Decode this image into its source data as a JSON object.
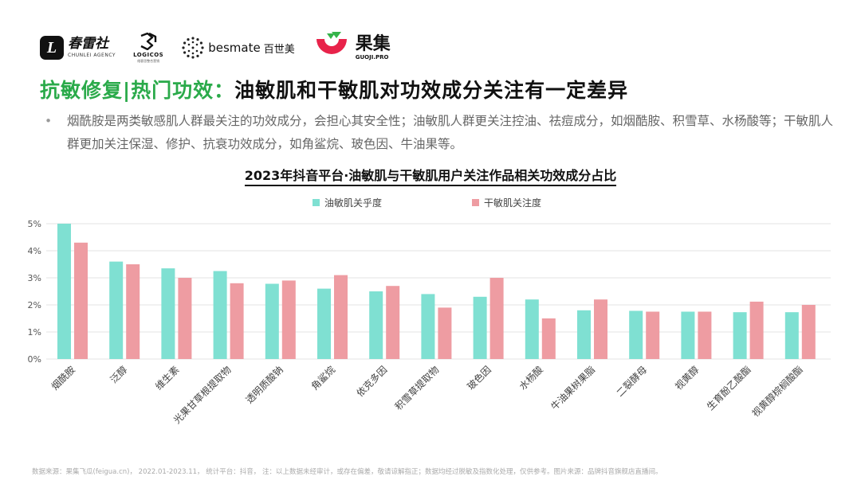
{
  "brands": {
    "chunlei_mark": "L",
    "chunlei_cn": "春雷社",
    "chunlei_en": "CHUNLEI AGENCY",
    "logicos_en": "LOGICOS",
    "logicos_cn": "络客思整合营销",
    "besmate_en": "besmate",
    "besmate_cn": "百世美",
    "guoji_cn": "果集",
    "guoji_en": "GUOJI.PRO"
  },
  "headline": {
    "tag": "抗敏修复",
    "sep": "|",
    "topic": "热门功效：",
    "statement": "油敏肌和干敏肌对功效成分关注有一定差异"
  },
  "bullet": {
    "marker": "•",
    "text": "烟酰胺是两类敏感肌人群最关注的功效成分，会担心其安全性；油敏肌人群更关注控油、祛痘成分，如烟酷胺、积雪草、水杨酸等；干敏肌人群更加关注保湿、修护、抗衰功效成分，如角鲨烷、玻色因、牛油果等。"
  },
  "chart_data": {
    "type": "bar",
    "title": "2023年抖音平台·油敏肌与干敏肌用户关注作品相关功效成分占比",
    "categories": [
      "烟酰胺",
      "泛醇",
      "维生素",
      "光果甘草根提取物",
      "透明质酸钠",
      "角鲨烷",
      "依克多因",
      "积雪草提取物",
      "玻色因",
      "水杨酸",
      "牛油果树果脂",
      "二裂酵母",
      "视黄醇",
      "生育酚乙酸酯",
      "视黄醇棕榈酸酯"
    ],
    "series": [
      {
        "name": "油敏肌关乎度",
        "color": "#7fe0d2",
        "values": [
          5.0,
          3.6,
          3.35,
          3.25,
          2.78,
          2.6,
          2.5,
          2.4,
          2.3,
          2.2,
          1.8,
          1.78,
          1.75,
          1.73,
          1.73
        ]
      },
      {
        "name": "干敏肌关注度",
        "color": "#ee9ca2",
        "values": [
          4.3,
          3.5,
          3.0,
          2.8,
          2.9,
          3.1,
          2.7,
          1.9,
          3.0,
          1.5,
          2.2,
          1.75,
          1.75,
          2.12,
          2.0
        ]
      }
    ],
    "yticks": [
      "0%",
      "1%",
      "2%",
      "3%",
      "4%",
      "5%"
    ],
    "ylim": [
      0,
      5
    ],
    "unit": "%",
    "grid": true,
    "legend_position": "top-center"
  },
  "footer": {
    "text": "数据来源：果集飞瓜(feigua.cn)， 2022.01-2023.11， 统计平台：抖音， 注：以上数据未经审计，或存在偏差，敬请谅解指正；数据均经过脱敏及指数化处理，仅供参考。图片来源：品牌抖音旗舰店直播间。"
  }
}
